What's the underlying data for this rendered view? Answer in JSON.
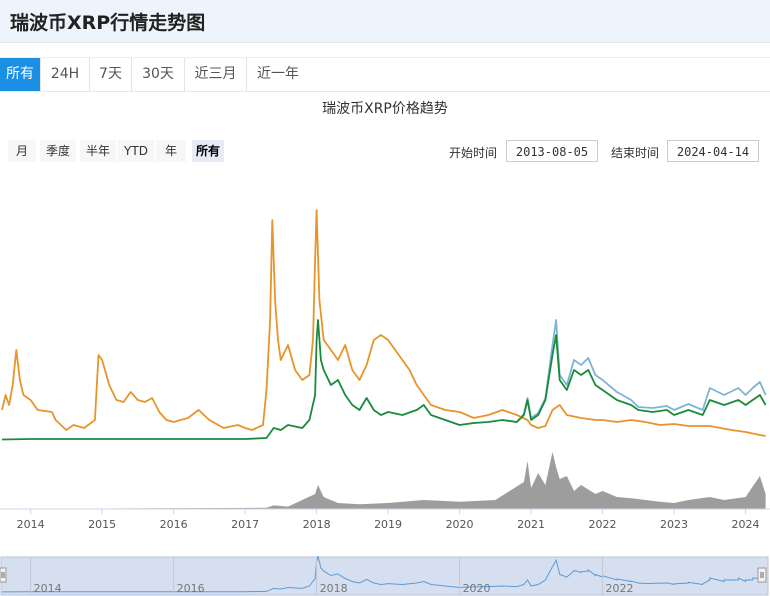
{
  "header": {
    "title": "瑞波币XRP行情走势图"
  },
  "tabs": [
    {
      "label": "所有",
      "active": true
    },
    {
      "label": "24H",
      "active": false
    },
    {
      "label": "7天",
      "active": false
    },
    {
      "label": "30天",
      "active": false
    },
    {
      "label": "近三月",
      "active": false
    },
    {
      "label": "近一年",
      "active": false
    }
  ],
  "range_buttons": [
    {
      "label": "月",
      "active": false
    },
    {
      "label": "季度",
      "active": false
    },
    {
      "label": "半年",
      "active": false
    },
    {
      "label": "YTD",
      "active": false
    },
    {
      "label": "年",
      "active": false
    },
    {
      "label": "所有",
      "active": true
    }
  ],
  "date_range": {
    "start_label": "开始时间",
    "start_value": "2013-08-05",
    "end_label": "结束时间",
    "end_value": "2024-04-14"
  },
  "colors": {
    "orange": "#e8942a",
    "green": "#1a8a3c",
    "blue": "#7fb3d5",
    "volume": "#8c8c8c",
    "navigator_bg": "#d6dff0",
    "navigator_line": "#5b9bd5"
  },
  "chart_data": {
    "type": "line",
    "title": "瑞波币XRP价格趋势",
    "x_ticks": [
      "2014",
      "2015",
      "2016",
      "2017",
      "2018",
      "2019",
      "2020",
      "2021",
      "2022",
      "2023",
      "2024"
    ],
    "navigator_ticks": [
      "2014",
      "2016",
      "2018",
      "2020",
      "2022"
    ],
    "x_range": [
      2013.6,
      2024.3
    ],
    "series": [
      {
        "name": "",
        "color_key": "orange",
        "points": [
          [
            2013.6,
            0.3
          ],
          [
            2013.65,
            0.45
          ],
          [
            2013.7,
            0.35
          ],
          [
            2013.75,
            0.55
          ],
          [
            2013.8,
            0.9
          ],
          [
            2013.85,
            0.6
          ],
          [
            2013.9,
            0.45
          ],
          [
            2014.0,
            0.4
          ],
          [
            2014.1,
            0.3
          ],
          [
            2014.3,
            0.28
          ],
          [
            2014.35,
            0.2
          ],
          [
            2014.5,
            0.1
          ],
          [
            2014.6,
            0.15
          ],
          [
            2014.75,
            0.12
          ],
          [
            2014.9,
            0.2
          ],
          [
            2014.95,
            0.85
          ],
          [
            2015.0,
            0.8
          ],
          [
            2015.1,
            0.55
          ],
          [
            2015.2,
            0.4
          ],
          [
            2015.3,
            0.38
          ],
          [
            2015.4,
            0.48
          ],
          [
            2015.5,
            0.4
          ],
          [
            2015.6,
            0.38
          ],
          [
            2015.7,
            0.42
          ],
          [
            2015.8,
            0.28
          ],
          [
            2015.9,
            0.2
          ],
          [
            2016.0,
            0.18
          ],
          [
            2016.2,
            0.22
          ],
          [
            2016.35,
            0.3
          ],
          [
            2016.5,
            0.2
          ],
          [
            2016.7,
            0.12
          ],
          [
            2016.9,
            0.15
          ],
          [
            2017.0,
            0.12
          ],
          [
            2017.1,
            0.1
          ],
          [
            2017.25,
            0.15
          ],
          [
            2017.3,
            0.5
          ],
          [
            2017.35,
            1.2
          ],
          [
            2017.38,
            2.2
          ],
          [
            2017.42,
            1.4
          ],
          [
            2017.46,
            1.0
          ],
          [
            2017.5,
            0.8
          ],
          [
            2017.6,
            0.95
          ],
          [
            2017.7,
            0.7
          ],
          [
            2017.8,
            0.6
          ],
          [
            2017.9,
            0.65
          ],
          [
            2017.95,
            1.0
          ],
          [
            2017.98,
            1.8
          ],
          [
            2018.0,
            2.3
          ],
          [
            2018.04,
            1.4
          ],
          [
            2018.1,
            1.0
          ],
          [
            2018.2,
            0.9
          ],
          [
            2018.3,
            0.8
          ],
          [
            2018.4,
            0.95
          ],
          [
            2018.5,
            0.7
          ],
          [
            2018.6,
            0.6
          ],
          [
            2018.7,
            0.75
          ],
          [
            2018.8,
            1.0
          ],
          [
            2018.9,
            1.05
          ],
          [
            2019.0,
            1.0
          ],
          [
            2019.1,
            0.9
          ],
          [
            2019.2,
            0.8
          ],
          [
            2019.3,
            0.7
          ],
          [
            2019.4,
            0.55
          ],
          [
            2019.5,
            0.45
          ],
          [
            2019.6,
            0.35
          ],
          [
            2019.8,
            0.3
          ],
          [
            2020.0,
            0.28
          ],
          [
            2020.2,
            0.22
          ],
          [
            2020.4,
            0.25
          ],
          [
            2020.6,
            0.3
          ],
          [
            2020.8,
            0.25
          ],
          [
            2020.95,
            0.2
          ],
          [
            2021.0,
            0.15
          ],
          [
            2021.1,
            0.12
          ],
          [
            2021.2,
            0.14
          ],
          [
            2021.3,
            0.3
          ],
          [
            2021.4,
            0.35
          ],
          [
            2021.5,
            0.25
          ],
          [
            2021.7,
            0.22
          ],
          [
            2021.9,
            0.2
          ],
          [
            2022.0,
            0.2
          ],
          [
            2022.2,
            0.18
          ],
          [
            2022.4,
            0.2
          ],
          [
            2022.6,
            0.18
          ],
          [
            2022.8,
            0.15
          ],
          [
            2023.0,
            0.16
          ],
          [
            2023.2,
            0.14
          ],
          [
            2023.5,
            0.14
          ],
          [
            2023.8,
            0.1
          ],
          [
            2024.0,
            0.08
          ],
          [
            2024.2,
            0.05
          ],
          [
            2024.28,
            0.04
          ]
        ]
      },
      {
        "name": "",
        "color_key": "green",
        "points": [
          [
            2013.6,
            0.005
          ],
          [
            2014.0,
            0.01
          ],
          [
            2015.0,
            0.01
          ],
          [
            2016.0,
            0.01
          ],
          [
            2017.0,
            0.01
          ],
          [
            2017.3,
            0.02
          ],
          [
            2017.4,
            0.12
          ],
          [
            2017.5,
            0.1
          ],
          [
            2017.6,
            0.15
          ],
          [
            2017.8,
            0.12
          ],
          [
            2017.9,
            0.2
          ],
          [
            2017.98,
            0.45
          ],
          [
            2018.0,
            1.0
          ],
          [
            2018.02,
            1.2
          ],
          [
            2018.06,
            0.8
          ],
          [
            2018.1,
            0.7
          ],
          [
            2018.2,
            0.55
          ],
          [
            2018.3,
            0.6
          ],
          [
            2018.4,
            0.45
          ],
          [
            2018.5,
            0.35
          ],
          [
            2018.6,
            0.3
          ],
          [
            2018.7,
            0.42
          ],
          [
            2018.8,
            0.3
          ],
          [
            2018.9,
            0.25
          ],
          [
            2019.0,
            0.28
          ],
          [
            2019.2,
            0.25
          ],
          [
            2019.4,
            0.3
          ],
          [
            2019.5,
            0.35
          ],
          [
            2019.6,
            0.25
          ],
          [
            2019.8,
            0.2
          ],
          [
            2020.0,
            0.15
          ],
          [
            2020.2,
            0.17
          ],
          [
            2020.4,
            0.18
          ],
          [
            2020.6,
            0.2
          ],
          [
            2020.8,
            0.18
          ],
          [
            2020.9,
            0.25
          ],
          [
            2020.95,
            0.4
          ],
          [
            2021.0,
            0.2
          ],
          [
            2021.1,
            0.25
          ],
          [
            2021.2,
            0.4
          ],
          [
            2021.3,
            0.85
          ],
          [
            2021.35,
            1.05
          ],
          [
            2021.4,
            0.6
          ],
          [
            2021.5,
            0.5
          ],
          [
            2021.6,
            0.7
          ],
          [
            2021.7,
            0.65
          ],
          [
            2021.8,
            0.7
          ],
          [
            2021.9,
            0.55
          ],
          [
            2022.0,
            0.5
          ],
          [
            2022.2,
            0.4
          ],
          [
            2022.4,
            0.35
          ],
          [
            2022.5,
            0.3
          ],
          [
            2022.7,
            0.28
          ],
          [
            2022.9,
            0.3
          ],
          [
            2023.0,
            0.25
          ],
          [
            2023.2,
            0.3
          ],
          [
            2023.4,
            0.25
          ],
          [
            2023.5,
            0.4
          ],
          [
            2023.7,
            0.35
          ],
          [
            2023.9,
            0.4
          ],
          [
            2024.0,
            0.35
          ],
          [
            2024.1,
            0.4
          ],
          [
            2024.2,
            0.45
          ],
          [
            2024.28,
            0.35
          ]
        ]
      },
      {
        "name": "",
        "color_key": "blue",
        "points": [
          [
            2020.6,
            0.2
          ],
          [
            2020.8,
            0.18
          ],
          [
            2020.9,
            0.26
          ],
          [
            2020.95,
            0.42
          ],
          [
            2021.0,
            0.22
          ],
          [
            2021.1,
            0.27
          ],
          [
            2021.2,
            0.42
          ],
          [
            2021.3,
            0.95
          ],
          [
            2021.35,
            1.2
          ],
          [
            2021.4,
            0.65
          ],
          [
            2021.5,
            0.55
          ],
          [
            2021.6,
            0.8
          ],
          [
            2021.7,
            0.75
          ],
          [
            2021.8,
            0.82
          ],
          [
            2021.9,
            0.65
          ],
          [
            2022.0,
            0.6
          ],
          [
            2022.2,
            0.48
          ],
          [
            2022.4,
            0.4
          ],
          [
            2022.5,
            0.33
          ],
          [
            2022.7,
            0.32
          ],
          [
            2022.9,
            0.34
          ],
          [
            2023.0,
            0.3
          ],
          [
            2023.2,
            0.36
          ],
          [
            2023.4,
            0.3
          ],
          [
            2023.5,
            0.52
          ],
          [
            2023.7,
            0.45
          ],
          [
            2023.9,
            0.52
          ],
          [
            2024.0,
            0.45
          ],
          [
            2024.1,
            0.52
          ],
          [
            2024.2,
            0.58
          ],
          [
            2024.28,
            0.45
          ]
        ]
      }
    ],
    "volume": [
      [
        2013.6,
        0
      ],
      [
        2017.3,
        0.02
      ],
      [
        2017.4,
        0.06
      ],
      [
        2017.6,
        0.04
      ],
      [
        2017.98,
        0.25
      ],
      [
        2018.02,
        0.4
      ],
      [
        2018.1,
        0.2
      ],
      [
        2018.3,
        0.1
      ],
      [
        2018.6,
        0.08
      ],
      [
        2019.0,
        0.1
      ],
      [
        2019.5,
        0.15
      ],
      [
        2020.0,
        0.12
      ],
      [
        2020.5,
        0.15
      ],
      [
        2020.9,
        0.45
      ],
      [
        2020.95,
        0.8
      ],
      [
        2021.0,
        0.35
      ],
      [
        2021.1,
        0.6
      ],
      [
        2021.2,
        0.4
      ],
      [
        2021.3,
        0.95
      ],
      [
        2021.35,
        0.7
      ],
      [
        2021.4,
        0.5
      ],
      [
        2021.5,
        0.55
      ],
      [
        2021.6,
        0.3
      ],
      [
        2021.7,
        0.4
      ],
      [
        2021.9,
        0.25
      ],
      [
        2022.0,
        0.3
      ],
      [
        2022.2,
        0.2
      ],
      [
        2022.4,
        0.18
      ],
      [
        2022.6,
        0.15
      ],
      [
        2022.8,
        0.12
      ],
      [
        2023.0,
        0.1
      ],
      [
        2023.2,
        0.15
      ],
      [
        2023.5,
        0.2
      ],
      [
        2023.7,
        0.15
      ],
      [
        2024.0,
        0.2
      ],
      [
        2024.2,
        0.55
      ],
      [
        2024.28,
        0.25
      ]
    ]
  }
}
